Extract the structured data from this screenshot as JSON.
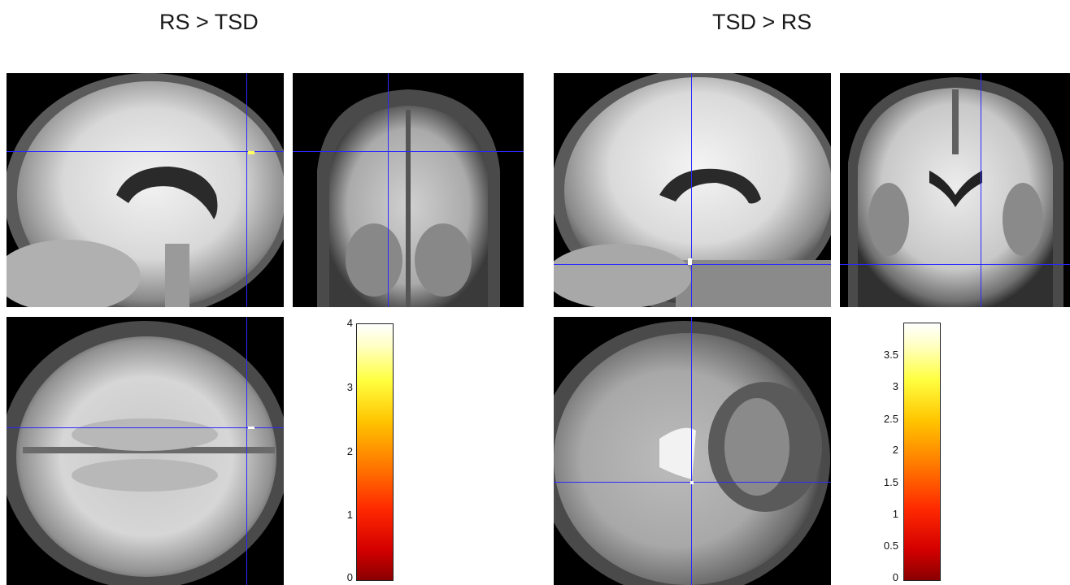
{
  "figures": [
    {
      "title": "RS > TSD",
      "colorbar_ticks": [
        "4",
        "3",
        "2",
        "1",
        "0"
      ]
    },
    {
      "title": "TSD > RS",
      "colorbar_ticks": [
        "3.5",
        "3",
        "2.5",
        "2",
        "1.5",
        "1",
        "0.5",
        "0"
      ]
    }
  ],
  "crosshair_color": "#2a2aff",
  "colormap": "hot"
}
